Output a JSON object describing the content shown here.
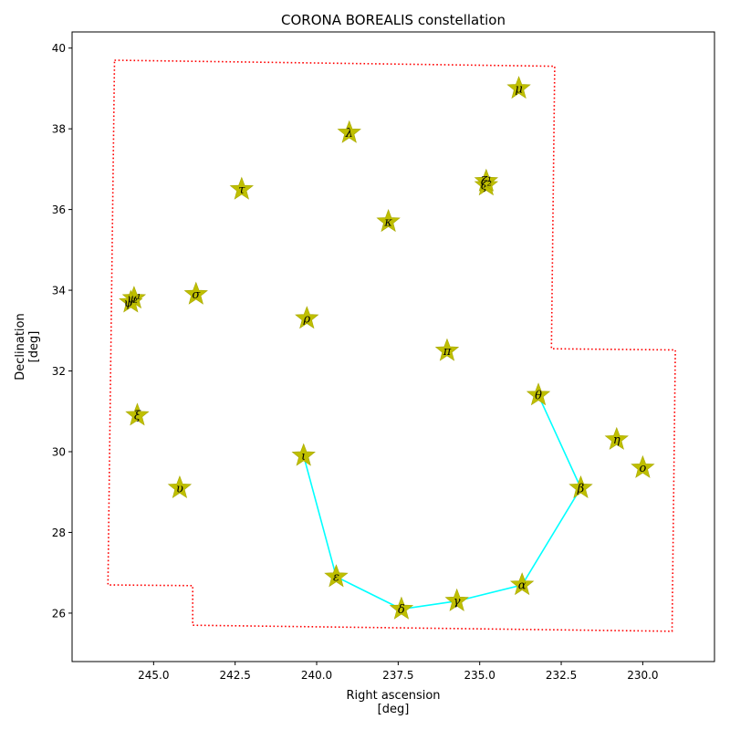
{
  "chart_data": {
    "type": "scatter",
    "title": "CORONA BOREALIS constellation",
    "xlabel": "Right ascension\n[deg]",
    "ylabel": "Declination\n[deg]",
    "xlim": [
      247.5,
      227.8
    ],
    "ylim": [
      24.8,
      40.4
    ],
    "x_inverted": true,
    "grid": false,
    "xticks": [
      245.0,
      242.5,
      240.0,
      237.5,
      235.0,
      232.5,
      230.0
    ],
    "xtick_labels": [
      "245.0",
      "242.5",
      "240.0",
      "237.5",
      "235.0",
      "232.5",
      "230.0"
    ],
    "yticks": [
      26,
      28,
      30,
      32,
      34,
      36,
      38,
      40
    ],
    "ytick_labels": [
      "26",
      "28",
      "30",
      "32",
      "34",
      "36",
      "38",
      "40"
    ],
    "star_color": "#bfbf00",
    "line_color": "#00ffff",
    "boundary_color": "#ff0000",
    "stars": [
      {
        "label": "μ",
        "x": 233.8,
        "y": 39.0
      },
      {
        "label": "λ",
        "x": 239.0,
        "y": 37.9
      },
      {
        "label": "τ",
        "x": 242.3,
        "y": 36.5
      },
      {
        "label": "ζ²",
        "x": 234.8,
        "y": 36.6
      },
      {
        "label": "ζ¹",
        "x": 234.8,
        "y": 36.7
      },
      {
        "label": "κ",
        "x": 237.8,
        "y": 35.7
      },
      {
        "label": "ψ¹",
        "x": 245.6,
        "y": 33.8
      },
      {
        "label": "ψ²",
        "x": 245.7,
        "y": 33.7
      },
      {
        "label": "σ",
        "x": 243.7,
        "y": 33.9
      },
      {
        "label": "ρ",
        "x": 240.3,
        "y": 33.3
      },
      {
        "label": "π",
        "x": 236.0,
        "y": 32.5
      },
      {
        "label": "θ",
        "x": 233.2,
        "y": 31.4
      },
      {
        "label": "ξ",
        "x": 245.5,
        "y": 30.9
      },
      {
        "label": "η",
        "x": 230.8,
        "y": 30.3
      },
      {
        "label": "ο",
        "x": 230.0,
        "y": 29.6
      },
      {
        "label": "ι",
        "x": 240.4,
        "y": 29.9
      },
      {
        "label": "υ",
        "x": 244.2,
        "y": 29.1
      },
      {
        "label": "β",
        "x": 231.9,
        "y": 29.1
      },
      {
        "label": "ε",
        "x": 239.4,
        "y": 26.9
      },
      {
        "label": "α",
        "x": 233.7,
        "y": 26.7
      },
      {
        "label": "γ",
        "x": 235.7,
        "y": 26.3
      },
      {
        "label": "δ",
        "x": 237.4,
        "y": 26.1
      }
    ],
    "lines": [
      [
        [
          240.4,
          29.9
        ],
        [
          239.4,
          26.9
        ],
        [
          237.4,
          26.1
        ],
        [
          235.7,
          26.3
        ],
        [
          233.7,
          26.7
        ],
        [
          231.9,
          29.1
        ],
        [
          233.2,
          31.4
        ]
      ]
    ],
    "boundary": [
      [
        246.2,
        39.7
      ],
      [
        232.7,
        39.55
      ],
      [
        232.8,
        32.55
      ],
      [
        229.0,
        32.52
      ],
      [
        229.1,
        25.55
      ],
      [
        243.8,
        25.7
      ],
      [
        243.8,
        26.68
      ],
      [
        246.4,
        26.7
      ],
      [
        246.2,
        39.7
      ]
    ]
  }
}
